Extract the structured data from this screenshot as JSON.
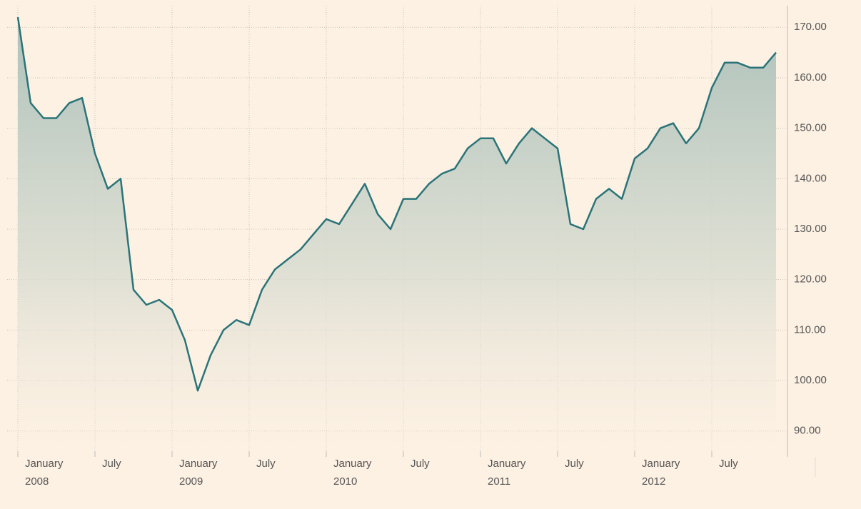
{
  "chart_data": {
    "type": "area",
    "x": [
      "2008-01",
      "2008-02",
      "2008-03",
      "2008-04",
      "2008-05",
      "2008-06",
      "2008-07",
      "2008-08",
      "2008-09",
      "2008-10",
      "2008-11",
      "2008-12",
      "2009-01",
      "2009-02",
      "2009-03",
      "2009-04",
      "2009-05",
      "2009-06",
      "2009-07",
      "2009-08",
      "2009-09",
      "2009-10",
      "2009-11",
      "2009-12",
      "2010-01",
      "2010-02",
      "2010-03",
      "2010-04",
      "2010-05",
      "2010-06",
      "2010-07",
      "2010-08",
      "2010-09",
      "2010-10",
      "2010-11",
      "2010-12",
      "2011-01",
      "2011-02",
      "2011-03",
      "2011-04",
      "2011-05",
      "2011-06",
      "2011-07",
      "2011-08",
      "2011-09",
      "2011-10",
      "2011-11",
      "2011-12",
      "2012-01",
      "2012-02",
      "2012-03",
      "2012-04",
      "2012-05",
      "2012-06",
      "2012-07",
      "2012-08",
      "2012-09",
      "2012-10",
      "2012-11",
      "2012-12"
    ],
    "values": [
      172,
      155,
      152,
      152,
      155,
      156,
      145,
      138,
      140,
      118,
      115,
      116,
      114,
      108,
      98,
      105,
      110,
      112,
      111,
      118,
      122,
      124,
      126,
      129,
      132,
      131,
      135,
      139,
      133,
      130,
      136,
      136,
      139,
      141,
      142,
      146,
      148,
      148,
      143,
      147,
      150,
      148,
      146,
      131,
      130,
      136,
      138,
      136,
      144,
      146,
      150,
      151,
      147,
      150,
      158,
      163,
      163,
      162,
      162,
      165
    ],
    "color": "#2a7479",
    "xlim": [
      "2008-01",
      "2012-12"
    ],
    "xticks": [
      {
        "value": "2008-01",
        "label": "January",
        "sublabel": "2008"
      },
      {
        "value": "2008-07",
        "label": "July"
      },
      {
        "value": "2009-01",
        "label": "January",
        "sublabel": "2009"
      },
      {
        "value": "2009-07",
        "label": "July"
      },
      {
        "value": "2010-01",
        "label": "January",
        "sublabel": "2010"
      },
      {
        "value": "2010-07",
        "label": "July"
      },
      {
        "value": "2011-01",
        "label": "January",
        "sublabel": "2011"
      },
      {
        "value": "2011-07",
        "label": "July"
      },
      {
        "value": "2012-01",
        "label": "January",
        "sublabel": "2012"
      },
      {
        "value": "2012-07",
        "label": "July"
      }
    ],
    "ylim": [
      86,
      174
    ],
    "yticks": [
      {
        "value": 90,
        "label": "90.00"
      },
      {
        "value": 100,
        "label": "100.00"
      },
      {
        "value": 110,
        "label": "110.00"
      },
      {
        "value": 120,
        "label": "120.00"
      },
      {
        "value": 130,
        "label": "130.00"
      },
      {
        "value": 140,
        "label": "140.00"
      },
      {
        "value": 150,
        "label": "150.00"
      },
      {
        "value": 160,
        "label": "160.00"
      },
      {
        "value": 170,
        "label": "170.00"
      }
    ],
    "grid": true
  }
}
